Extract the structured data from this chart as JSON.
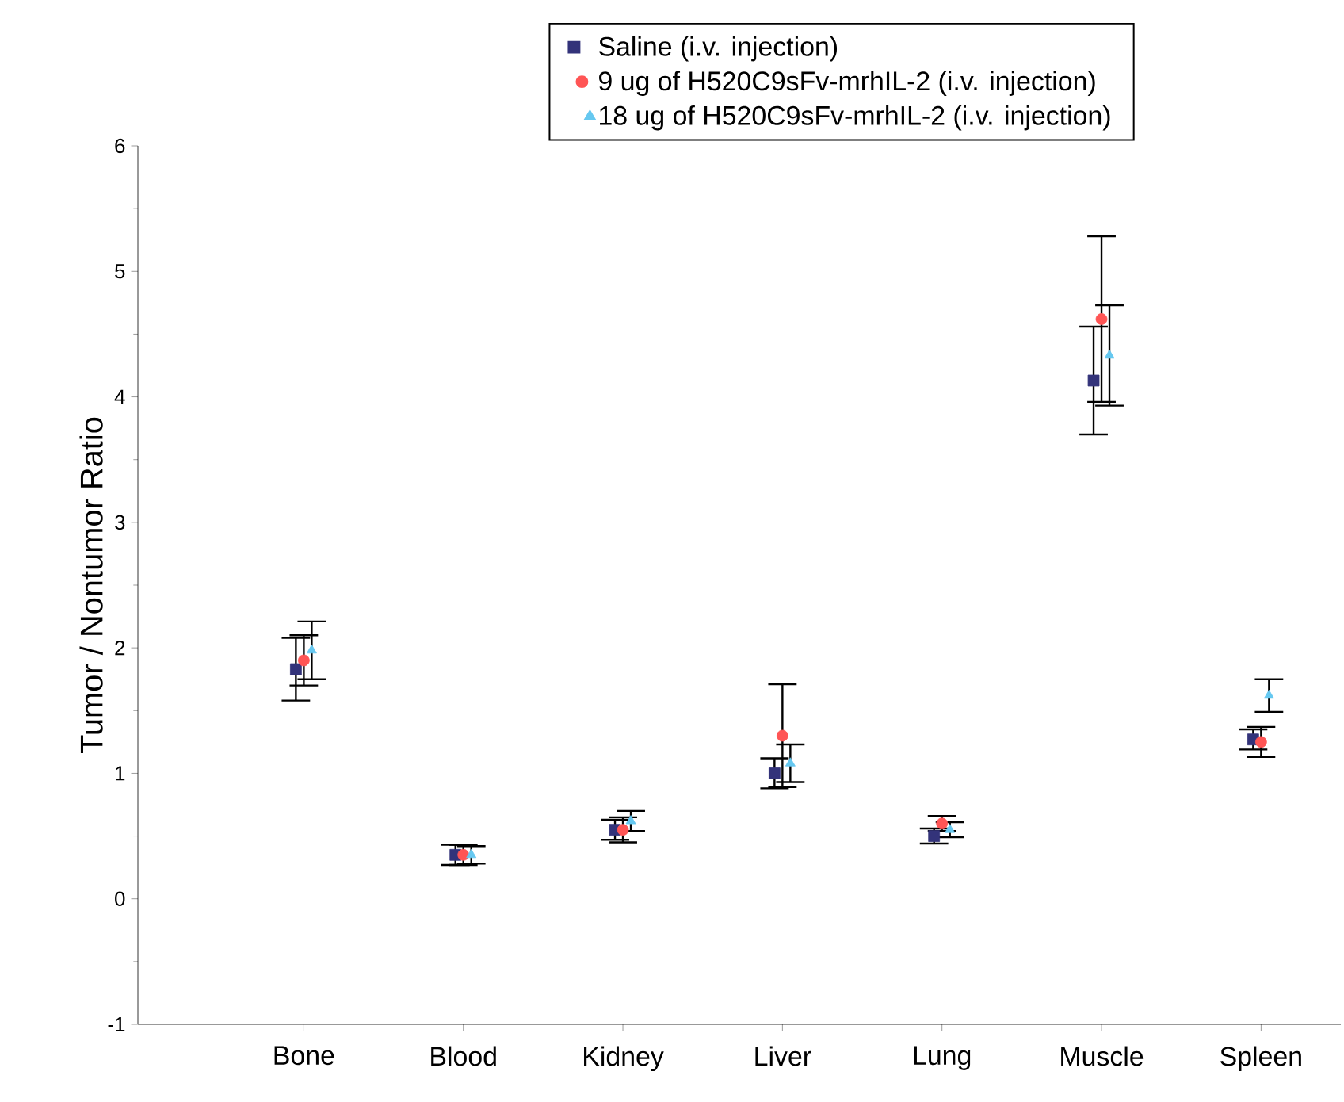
{
  "chart_data": {
    "type": "scatter",
    "ylabel": "Tumor / Nontumor Ratio",
    "categories": [
      "Bone",
      "Blood",
      "Kidney",
      "Liver",
      "Lung",
      "Muscle",
      "Spleen"
    ],
    "ylim": [
      -1,
      6
    ],
    "yticks": [
      -1,
      0,
      1,
      2,
      3,
      4,
      5,
      6
    ],
    "grid": false,
    "legend": "top",
    "series": [
      {
        "name": "Saline (i.v. injection)",
        "color": "#33337a",
        "marker": "square",
        "values": [
          1.83,
          0.35,
          0.55,
          1.0,
          0.5,
          4.13,
          1.27
        ],
        "errors": [
          0.25,
          0.08,
          0.08,
          0.12,
          0.06,
          0.43,
          0.08
        ]
      },
      {
        "name": "9 ug of H520C9sFv-mrhIL-2 (i.v. injection)",
        "color": "#ff5555",
        "marker": "circle",
        "values": [
          1.9,
          0.35,
          0.55,
          1.3,
          0.6,
          4.62,
          1.25
        ],
        "errors": [
          0.2,
          0.08,
          0.1,
          0.41,
          0.06,
          0.66,
          0.12
        ]
      },
      {
        "name": "18 ug of H520C9sFv-mrhIL-2 (i.v. injection)",
        "color": "#66c8f0",
        "marker": "triangle",
        "values": [
          1.98,
          0.35,
          0.62,
          1.08,
          0.55,
          4.33,
          1.62
        ],
        "errors": [
          0.23,
          0.07,
          0.08,
          0.15,
          0.06,
          0.4,
          0.13
        ]
      }
    ]
  }
}
